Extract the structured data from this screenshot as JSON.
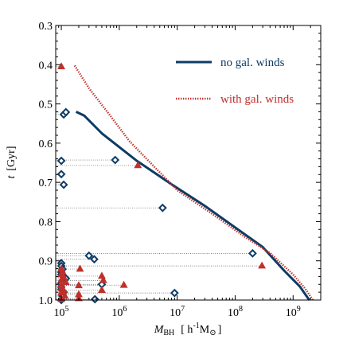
{
  "chart_data": {
    "type": "line",
    "xscale": "log",
    "xlim": [
      80000,
      3000000000
    ],
    "ylim": [
      1.0,
      0.3
    ],
    "y_inverted": true,
    "x_ticks": [
      100000,
      1000000,
      10000000,
      100000000,
      1000000000
    ],
    "x_tick_labels": [
      {
        "base": "10",
        "exp": "5"
      },
      {
        "base": "10",
        "exp": "6"
      },
      {
        "base": "10",
        "exp": "7"
      },
      {
        "base": "10",
        "exp": "8"
      },
      {
        "base": "10",
        "exp": "9"
      }
    ],
    "y_ticks": [
      0.3,
      0.4,
      0.5,
      0.6,
      0.7,
      0.8,
      0.9,
      1.0
    ],
    "y_tick_labels": [
      "0.3",
      "0.4",
      "0.5",
      "0.6",
      "0.7",
      "0.8",
      "0.9",
      "1.0"
    ],
    "xlabel": {
      "main": "M",
      "sub": "BH",
      "units_pre": "[ h",
      "units_exp": "-1",
      "units_post": "M",
      "units_sub": "⊙",
      "units_close": "]"
    },
    "ylabel": {
      "var": "t",
      "units": "[Gyr]"
    },
    "legend_position": "top-right",
    "series": [
      {
        "name": "no gal. winds",
        "color": "#0d3b66",
        "style": "solid",
        "points": [
          [
            180000,
            0.52
          ],
          [
            250000,
            0.53
          ],
          [
            500000,
            0.575
          ],
          [
            1000000,
            0.61
          ],
          [
            2000000,
            0.645
          ],
          [
            4000000,
            0.675
          ],
          [
            8000000,
            0.705
          ],
          [
            30000000,
            0.76
          ],
          [
            100000000,
            0.815
          ],
          [
            300000000,
            0.865
          ],
          [
            700000000,
            0.925
          ],
          [
            1300000000,
            0.965
          ],
          [
            1900000000,
            1.0
          ]
        ]
      },
      {
        "name": "with gal. winds",
        "color": "#c0302a",
        "style": "dotted",
        "points": [
          [
            170000,
            0.402
          ],
          [
            300000,
            0.46
          ],
          [
            700000,
            0.53
          ],
          [
            1500000,
            0.595
          ],
          [
            4000000,
            0.66
          ],
          [
            10000000,
            0.72
          ],
          [
            40000000,
            0.78
          ],
          [
            150000000,
            0.84
          ],
          [
            400000000,
            0.88
          ],
          [
            1000000000,
            0.935
          ],
          [
            1600000000,
            0.97
          ],
          [
            2200000000,
            1.0
          ]
        ]
      }
    ],
    "markers_no_winds": {
      "color": "#0d3b66",
      "shape": "diamond",
      "points": [
        [
          110000,
          0.527
        ],
        [
          120000,
          0.521
        ],
        [
          100000,
          0.645
        ],
        [
          850000,
          0.643
        ],
        [
          100000,
          0.679
        ],
        [
          110000,
          0.706
        ],
        [
          5600000,
          0.765
        ],
        [
          200000000,
          0.881
        ],
        [
          100000,
          0.906
        ],
        [
          100000,
          0.913
        ],
        [
          105000,
          0.921
        ],
        [
          100000,
          0.929
        ],
        [
          300000,
          0.887
        ],
        [
          370000,
          0.896
        ],
        [
          100000,
          0.935
        ],
        [
          120000,
          0.945
        ],
        [
          100000,
          0.958
        ],
        [
          500000,
          0.96
        ],
        [
          100000,
          0.967
        ],
        [
          100000,
          0.973
        ],
        [
          110000,
          0.98
        ],
        [
          105000,
          0.99
        ],
        [
          9000000,
          0.982
        ],
        [
          380000,
          0.998
        ],
        [
          100000,
          1.0
        ]
      ]
    },
    "markers_with_winds": {
      "color": "#c0302a",
      "shape": "triangle",
      "points": [
        [
          100000,
          0.405
        ],
        [
          2100000,
          0.657
        ],
        [
          290000000,
          0.913
        ],
        [
          100000,
          0.92
        ],
        [
          105000,
          0.928
        ],
        [
          210000,
          0.921
        ],
        [
          100000,
          0.935
        ],
        [
          110000,
          0.942
        ],
        [
          500000,
          0.939
        ],
        [
          100000,
          0.949
        ],
        [
          530000,
          0.95
        ],
        [
          120000,
          0.955
        ],
        [
          1200000,
          0.962
        ],
        [
          100000,
          0.962
        ],
        [
          200000,
          0.963
        ],
        [
          100000,
          0.97
        ],
        [
          110000,
          0.976
        ],
        [
          500000,
          0.975
        ],
        [
          100000,
          0.982
        ],
        [
          200000,
          0.986
        ],
        [
          115000,
          0.99
        ],
        [
          200000,
          0.996
        ],
        [
          100000,
          0.998
        ]
      ]
    }
  }
}
